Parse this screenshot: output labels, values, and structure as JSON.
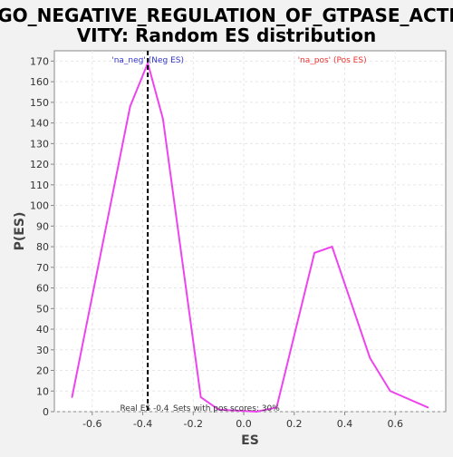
{
  "chart_data": {
    "type": "line",
    "title": "GO_NEGATIVE_REGULATION_OF_GTPASE_ACTIVITY: Random ES distribution",
    "title_lines": [
      "GO_NEGATIVE_REGULATION_OF_GTPASE_ACTI",
      "VITY: Random ES distribution"
    ],
    "xlabel": "ES",
    "ylabel": "P(ES)",
    "xlim": [
      -0.75,
      0.8
    ],
    "ylim": [
      0,
      175
    ],
    "x_ticks": [
      -0.6,
      -0.4,
      -0.2,
      0.0,
      0.2,
      0.4,
      0.6
    ],
    "x_tick_labels": [
      "-0.6",
      "-0.4",
      "-0.2",
      "0.0",
      "0.2",
      "0.4",
      "0.6"
    ],
    "y_ticks": [
      0,
      10,
      20,
      30,
      40,
      50,
      60,
      70,
      80,
      90,
      100,
      110,
      120,
      130,
      140,
      150,
      160,
      170
    ],
    "grid": true,
    "series": [
      {
        "color": "#ee44ee",
        "points": [
          {
            "x": -0.68,
            "y": 7
          },
          {
            "x": -0.45,
            "y": 148
          },
          {
            "x": -0.38,
            "y": 169
          },
          {
            "x": -0.32,
            "y": 142
          },
          {
            "x": -0.17,
            "y": 7
          },
          {
            "x": -0.1,
            "y": 1
          },
          {
            "x": 0.05,
            "y": 0
          },
          {
            "x": 0.13,
            "y": 2
          },
          {
            "x": 0.28,
            "y": 77
          },
          {
            "x": 0.35,
            "y": 80
          },
          {
            "x": 0.5,
            "y": 26
          },
          {
            "x": 0.58,
            "y": 10
          },
          {
            "x": 0.73,
            "y": 2
          }
        ]
      }
    ],
    "vline": {
      "x": -0.38,
      "color": "#000000",
      "style": "dashed"
    },
    "annotations": {
      "neg_label": {
        "text": "'na_neg' (Neg ES)",
        "color": "#3333cc"
      },
      "pos_label": {
        "text": "'na_pos' (Pos ES)",
        "color": "#ee3333"
      },
      "real_es": {
        "text": "Real ES -0.4",
        "color": "#333333"
      },
      "pos_scores": {
        "text": "Sets with pos scores: 30%",
        "color": "#333333"
      }
    },
    "colors": {
      "background": "#f2f2f2",
      "plot_background": "#ffffff",
      "grid": "#e6e6e6",
      "axis": "#888888"
    }
  }
}
